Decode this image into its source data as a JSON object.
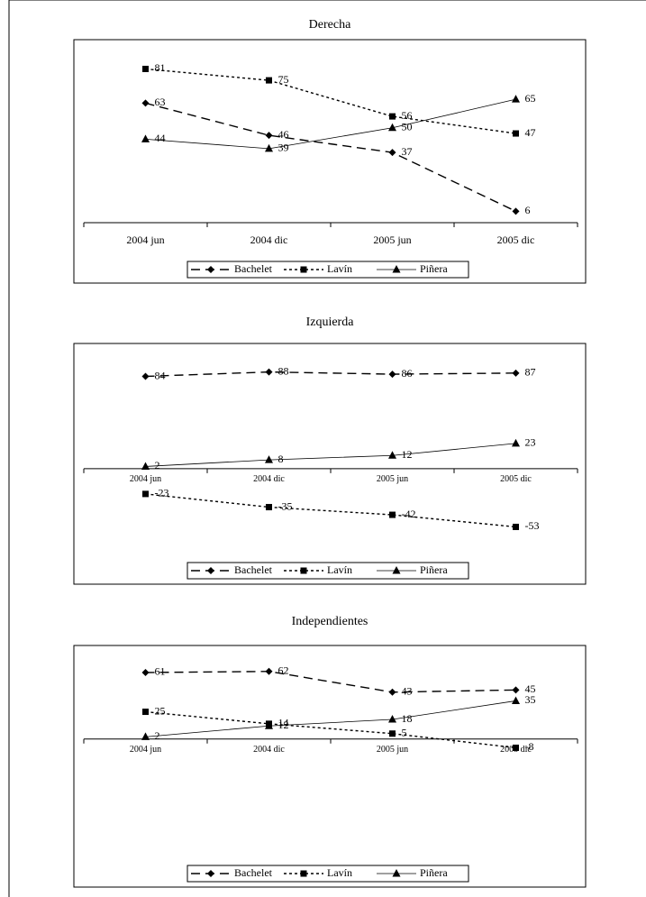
{
  "chart_data": [
    {
      "type": "line",
      "title": "Derecha",
      "categories": [
        "2004 jun",
        "2004 dic",
        "2005 jun",
        "2005 dic"
      ],
      "ylim": [
        0,
        95
      ],
      "series": [
        {
          "name": "Bachelet",
          "color": "#000000",
          "dash": "dashed",
          "marker": "diamond",
          "values": [
            63,
            46,
            37,
            6
          ]
        },
        {
          "name": "Lavín",
          "color": "#000000",
          "dash": "dashdot",
          "marker": "square",
          "values": [
            81,
            75,
            56,
            47
          ]
        },
        {
          "name": "Piñera",
          "color": "#000000",
          "dash": "solid",
          "marker": "triangle",
          "values": [
            44,
            39,
            50,
            65
          ]
        }
      ]
    },
    {
      "type": "line",
      "title": "Izquierda",
      "categories": [
        "2004 jun",
        "2004 dic",
        "2005 jun",
        "2005 dic"
      ],
      "ylim": [
        -60,
        100
      ],
      "series": [
        {
          "name": "Bachelet",
          "color": "#000000",
          "dash": "dashed",
          "marker": "diamond",
          "values": [
            84,
            88,
            86,
            87
          ]
        },
        {
          "name": "Lavín",
          "color": "#000000",
          "dash": "dashdot",
          "marker": "square",
          "values": [
            -23,
            -35,
            -42,
            -53
          ]
        },
        {
          "name": "Piñera",
          "color": "#000000",
          "dash": "solid",
          "marker": "triangle",
          "values": [
            2,
            8,
            12,
            23
          ]
        }
      ]
    },
    {
      "type": "line",
      "title": "Independientes",
      "categories": [
        "2004 jun",
        "2004 dic",
        "2005 jun",
        "2005 dic"
      ],
      "ylim": [
        -20,
        80
      ],
      "series": [
        {
          "name": "Bachelet",
          "color": "#000000",
          "dash": "dashed",
          "marker": "diamond",
          "values": [
            61,
            62,
            43,
            45
          ]
        },
        {
          "name": "Lavín",
          "color": "#000000",
          "dash": "dashdot",
          "marker": "square",
          "values": [
            25,
            14,
            5,
            -8
          ]
        },
        {
          "name": "Piñera",
          "color": "#000000",
          "dash": "solid",
          "marker": "triangle",
          "values": [
            2,
            12,
            18,
            35
          ]
        }
      ]
    }
  ]
}
